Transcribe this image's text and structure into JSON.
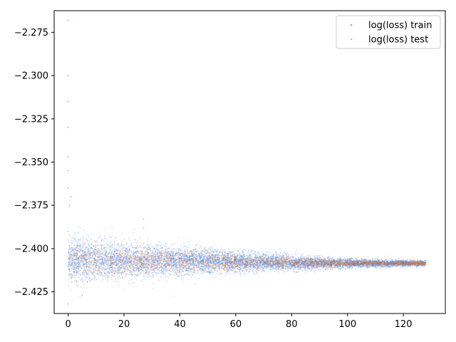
{
  "chart_data": {
    "type": "scatter",
    "title": "",
    "xlabel": "",
    "ylabel": "",
    "xlim": [
      -5,
      135
    ],
    "ylim": [
      -2.4375,
      -2.2625
    ],
    "xticks": [
      0,
      20,
      40,
      60,
      80,
      100,
      120
    ],
    "yticks": [
      -2.425,
      -2.4,
      -2.375,
      -2.35,
      -2.325,
      -2.3,
      -2.275
    ],
    "xtick_labels": [
      "0",
      "20",
      "40",
      "60",
      "80",
      "100",
      "120"
    ],
    "ytick_labels": [
      "−2.425",
      "−2.400",
      "−2.375",
      "−2.350",
      "−2.325",
      "−2.300",
      "−2.275"
    ],
    "grid": false,
    "legend_position": "top-right",
    "series": [
      {
        "name": "log(loss) train",
        "color": "#1f77ff",
        "x_range": [
          0,
          128
        ],
        "center": -2.4065,
        "end_center": -2.4085,
        "spread_start": 0.006,
        "spread_end": 0.0008,
        "outliers": [
          {
            "x": 0,
            "y": -2.268
          },
          {
            "x": 0,
            "y": -2.3
          },
          {
            "x": 0,
            "y": -2.315
          },
          {
            "x": 0,
            "y": -2.33
          },
          {
            "x": 0,
            "y": -2.347
          },
          {
            "x": 0,
            "y": -2.355
          },
          {
            "x": 0,
            "y": -2.365
          },
          {
            "x": 0.5,
            "y": -2.375
          },
          {
            "x": 1,
            "y": -2.37
          },
          {
            "x": 0,
            "y": -2.432
          }
        ]
      },
      {
        "name": "log(loss) test",
        "color": "#ff7f0e",
        "x_range": [
          0,
          128
        ],
        "center": -2.4065,
        "end_center": -2.4085,
        "spread_start": 0.005,
        "spread_end": 0.0007,
        "outliers": [
          {
            "x": 0,
            "y": -2.39
          },
          {
            "x": 27,
            "y": -2.383
          },
          {
            "x": 27,
            "y": -2.388
          },
          {
            "x": 46,
            "y": -2.398
          },
          {
            "x": 5,
            "y": -2.427
          }
        ]
      }
    ]
  }
}
